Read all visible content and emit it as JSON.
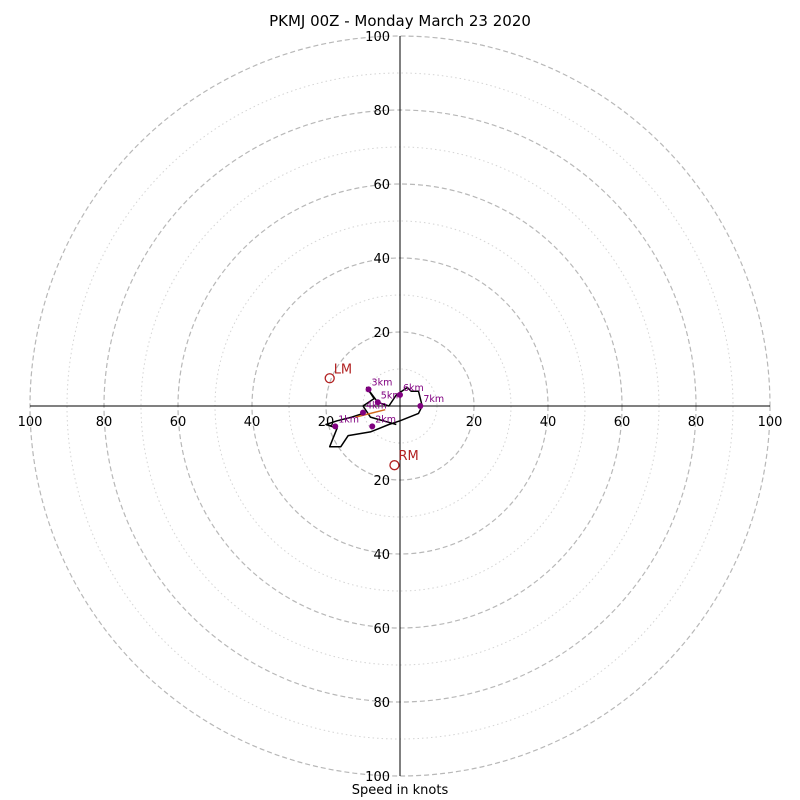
{
  "chart_data": {
    "type": "scatter",
    "title": "PKMJ 00Z - Monday March 23 2020",
    "xlabel": "Speed in knots",
    "ylabel": "",
    "units": "knots",
    "ring_labels": [
      "20",
      "40",
      "60",
      "80",
      "100"
    ],
    "major_rings": [
      20,
      40,
      60,
      80,
      100
    ],
    "minor_rings": [
      10,
      30,
      50,
      70,
      90
    ],
    "hodograph_trace": [
      [
        -1,
        -5
      ],
      [
        -8,
        -3
      ],
      [
        -10,
        0
      ],
      [
        -7,
        2
      ],
      [
        -9,
        5
      ],
      [
        -6,
        1
      ],
      [
        -3,
        0
      ],
      [
        -1,
        3
      ],
      [
        2,
        5
      ],
      [
        3,
        4
      ],
      [
        5,
        4
      ],
      [
        6,
        0
      ],
      [
        5,
        -2
      ],
      [
        0,
        -4
      ],
      [
        -3,
        -5
      ],
      [
        -8,
        -7
      ],
      [
        -14,
        -8
      ],
      [
        -16,
        -11
      ],
      [
        -19,
        -11
      ],
      [
        -17,
        -6
      ],
      [
        -20,
        -5
      ],
      [
        -17,
        -4
      ],
      [
        -13,
        -3
      ],
      [
        -10,
        -2
      ]
    ],
    "height_markers": [
      {
        "label": "1km",
        "u": -17.5,
        "v": -5.5
      },
      {
        "label": "2km",
        "u": -7.5,
        "v": -5.5
      },
      {
        "label": "3km",
        "u": -8.5,
        "v": 4.5
      },
      {
        "label": "4km",
        "u": -10,
        "v": -1.8
      },
      {
        "label": "5km",
        "u": -6,
        "v": 1
      },
      {
        "label": "6km",
        "u": 0,
        "v": 3
      },
      {
        "label": "7km",
        "u": 5.5,
        "v": 0
      }
    ],
    "storm_motion": [
      {
        "label": "LM",
        "u": -19,
        "v": 7.5
      },
      {
        "label": "RM",
        "u": -1.5,
        "v": -16
      }
    ],
    "colors": {
      "trace": "#000000",
      "marker": "#800080",
      "storm_motion": "#b22222",
      "vector": "#d2691e",
      "ring_major": "#b8b8b8",
      "ring_minor": "#d4d4d4"
    },
    "grid": true,
    "legend": "none"
  }
}
